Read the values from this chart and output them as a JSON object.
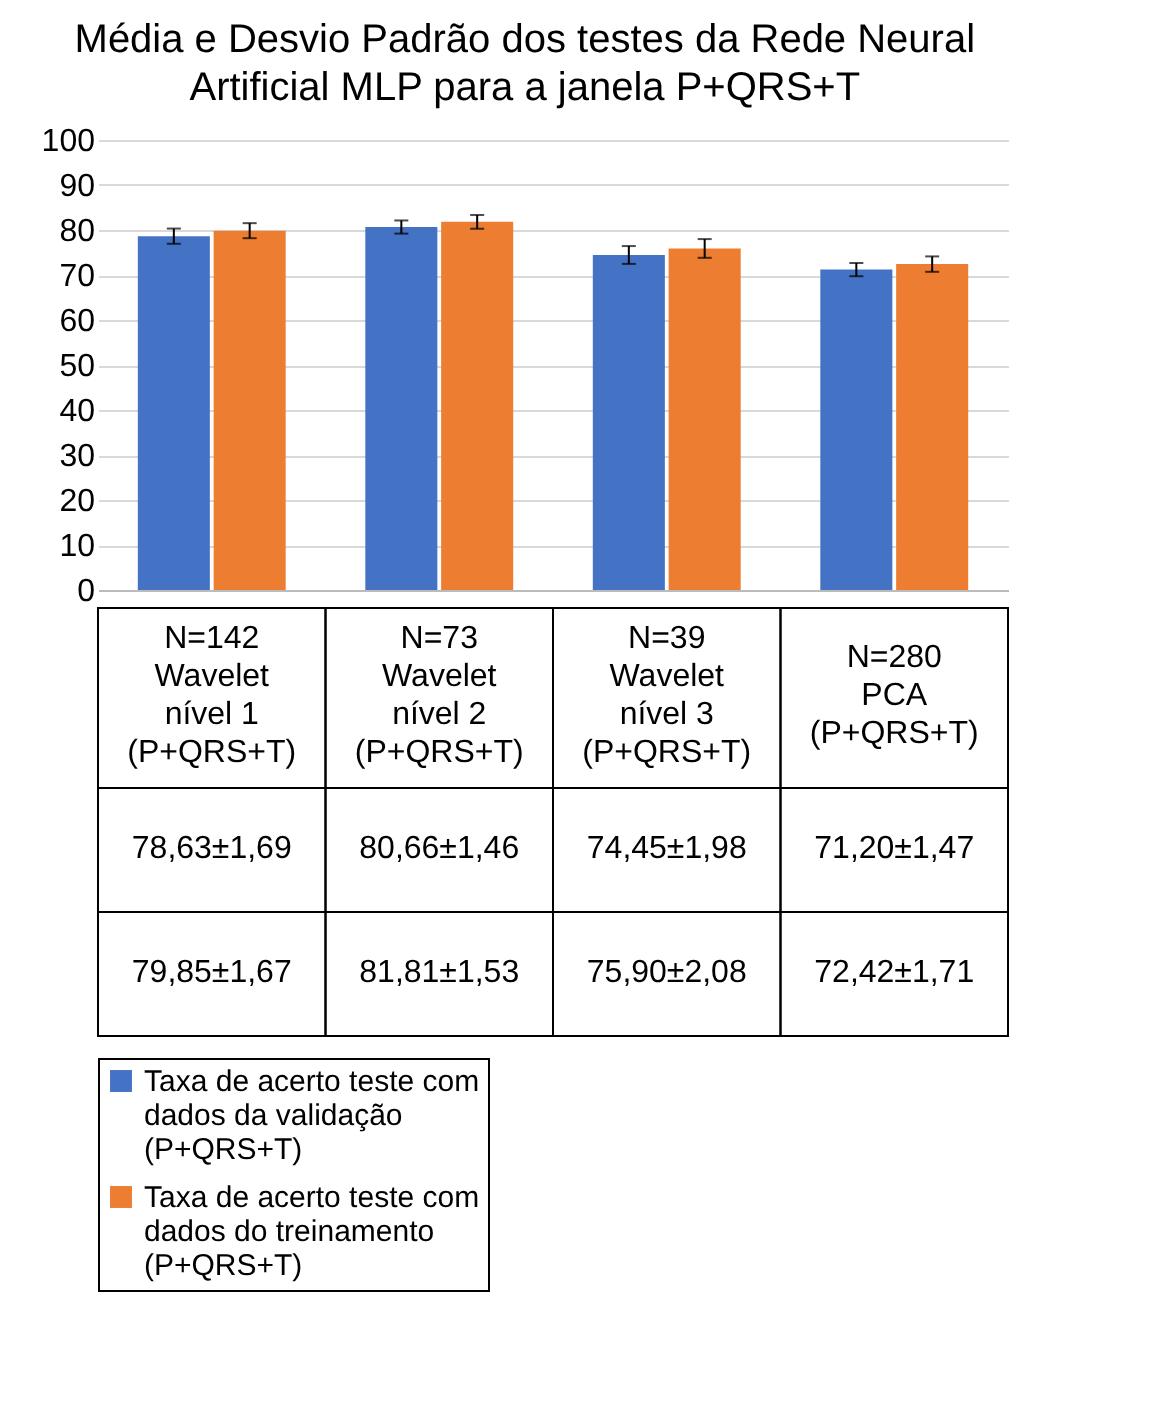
{
  "chart_data": {
    "type": "bar",
    "title": "Média e Desvio Padrão dos testes da Rede Neural Artificial MLP para a janela  P+QRS+T",
    "categories": [
      "N=142 Wavelet nível 1 (P+QRS+T)",
      "N=73 Wavelet nível 2 (P+QRS+T)",
      "N=39 Wavelet nível 3 (P+QRS+T)",
      "N=280 PCA (P+QRS+T)"
    ],
    "series": [
      {
        "name": "Taxa de acerto teste com dados da validação (P+QRS+T)",
        "color": "#4472c4",
        "values": [
          78.63,
          80.66,
          74.45,
          71.2
        ],
        "errors": [
          1.69,
          1.46,
          1.98,
          1.47
        ],
        "value_labels": [
          "78,63±1,69",
          "80,66±1,46",
          "74,45±1,98",
          "71,20±1,47"
        ]
      },
      {
        "name": "Taxa de acerto teste com dados do treinamento (P+QRS+T)",
        "color": "#ed7d31",
        "values": [
          79.85,
          81.81,
          75.9,
          72.42
        ],
        "errors": [
          1.67,
          1.53,
          2.08,
          1.71
        ],
        "value_labels": [
          "79,85±1,67",
          "81,81±1,53",
          "75,90±2,08",
          "72,42±1,71"
        ]
      }
    ],
    "ylim": [
      0,
      100
    ],
    "yticks": [
      0,
      10,
      20,
      30,
      40,
      50,
      60,
      70,
      80,
      90,
      100
    ],
    "grid": "y",
    "legend": "bottom"
  }
}
